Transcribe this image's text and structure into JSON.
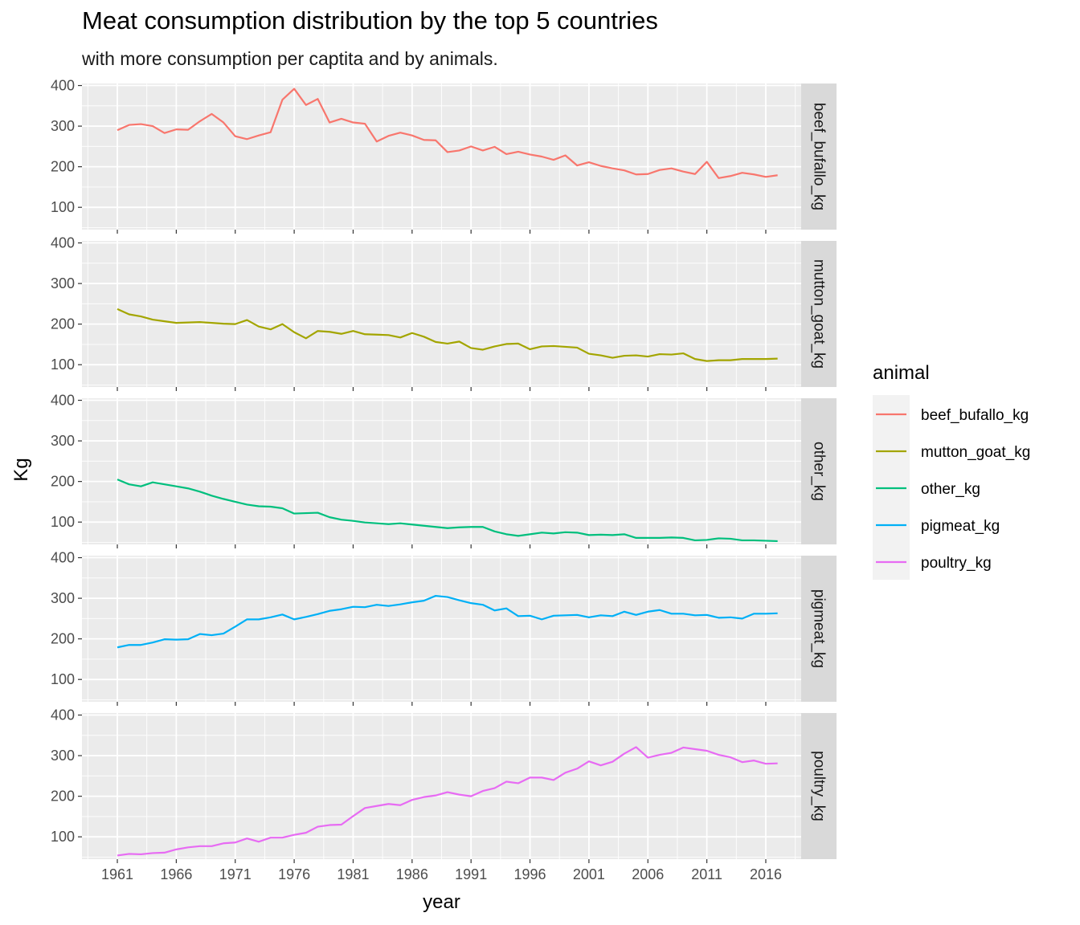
{
  "header": {
    "title": "Meat consumption distribution by the top 5 countries",
    "subtitle": "with more consumption per captita and by animals."
  },
  "chart_data": {
    "type": "line",
    "title": "Meat consumption distribution by the top 5 countries",
    "subtitle": "with more consumption per captita and by animals.",
    "xlabel": "year",
    "ylabel": "Kg",
    "facet_layout": "rows",
    "xlim": [
      1958,
      2019
    ],
    "ylim": [
      45,
      405
    ],
    "x_ticks": [
      1961,
      1966,
      1971,
      1976,
      1981,
      1986,
      1991,
      1996,
      2001,
      2006,
      2011,
      2016
    ],
    "y_ticks": [
      100,
      200,
      300,
      400
    ],
    "grid": true,
    "legend": {
      "title": "animal",
      "position": "right"
    },
    "x": [
      1961,
      1962,
      1963,
      1964,
      1965,
      1966,
      1967,
      1968,
      1969,
      1970,
      1971,
      1972,
      1973,
      1974,
      1975,
      1976,
      1977,
      1978,
      1979,
      1980,
      1981,
      1982,
      1983,
      1984,
      1985,
      1986,
      1987,
      1988,
      1989,
      1990,
      1991,
      1992,
      1993,
      1994,
      1995,
      1996,
      1997,
      1998,
      1999,
      2000,
      2001,
      2002,
      2003,
      2004,
      2005,
      2006,
      2007,
      2008,
      2009,
      2010,
      2011,
      2012,
      2013,
      2014,
      2015,
      2016,
      2017
    ],
    "series": [
      {
        "name": "beef_bufallo_kg",
        "color": "#F8766D",
        "values": [
          290,
          303,
          305,
          300,
          283,
          292,
          291,
          312,
          330,
          309,
          275,
          268,
          277,
          285,
          365,
          392,
          352,
          367,
          309,
          318,
          309,
          306,
          262,
          276,
          284,
          277,
          266,
          265,
          236,
          240,
          250,
          240,
          249,
          231,
          237,
          230,
          225,
          217,
          228,
          203,
          211,
          202,
          196,
          191,
          181,
          182,
          192,
          196,
          188,
          182,
          212,
          172,
          177,
          185,
          181,
          175,
          179
        ]
      },
      {
        "name": "mutton_goat_kg",
        "color": "#A3A500",
        "values": [
          237,
          224,
          219,
          211,
          207,
          203,
          204,
          205,
          203,
          201,
          200,
          210,
          194,
          187,
          200,
          180,
          165,
          183,
          181,
          176,
          183,
          175,
          174,
          173,
          167,
          178,
          169,
          156,
          152,
          157,
          141,
          137,
          145,
          151,
          152,
          138,
          145,
          146,
          144,
          142,
          127,
          123,
          117,
          122,
          123,
          120,
          126,
          125,
          128,
          114,
          109,
          111,
          111,
          114,
          114,
          114,
          115
        ]
      },
      {
        "name": "other_kg",
        "color": "#00BF7D",
        "values": [
          205,
          193,
          188,
          198,
          193,
          188,
          183,
          175,
          165,
          157,
          150,
          143,
          139,
          138,
          134,
          121,
          122,
          123,
          112,
          106,
          103,
          99,
          97,
          95,
          97,
          94,
          91,
          88,
          85,
          87,
          88,
          88,
          77,
          70,
          66,
          70,
          74,
          72,
          75,
          74,
          68,
          69,
          68,
          70,
          61,
          61,
          61,
          62,
          61,
          55,
          56,
          60,
          59,
          55,
          55,
          54,
          53
        ]
      },
      {
        "name": "pigmeat_kg",
        "color": "#00B0F6",
        "values": [
          179,
          185,
          185,
          191,
          199,
          198,
          199,
          212,
          209,
          213,
          230,
          248,
          248,
          253,
          260,
          248,
          254,
          261,
          269,
          273,
          279,
          278,
          284,
          281,
          285,
          290,
          294,
          306,
          303,
          295,
          288,
          284,
          270,
          275,
          256,
          257,
          248,
          257,
          258,
          259,
          253,
          258,
          256,
          267,
          259,
          267,
          271,
          262,
          262,
          258,
          259,
          252,
          253,
          250,
          262,
          262,
          263
        ]
      },
      {
        "name": "poultry_kg",
        "color": "#E76BF3",
        "values": [
          54,
          58,
          57,
          60,
          61,
          69,
          74,
          77,
          77,
          84,
          86,
          96,
          88,
          98,
          98,
          105,
          110,
          125,
          129,
          130,
          151,
          171,
          176,
          181,
          178,
          191,
          198,
          202,
          210,
          204,
          200,
          213,
          220,
          236,
          232,
          246,
          246,
          240,
          258,
          268,
          286,
          276,
          285,
          305,
          321,
          295,
          302,
          307,
          320,
          316,
          312,
          302,
          296,
          284,
          288,
          280,
          281
        ]
      }
    ]
  }
}
